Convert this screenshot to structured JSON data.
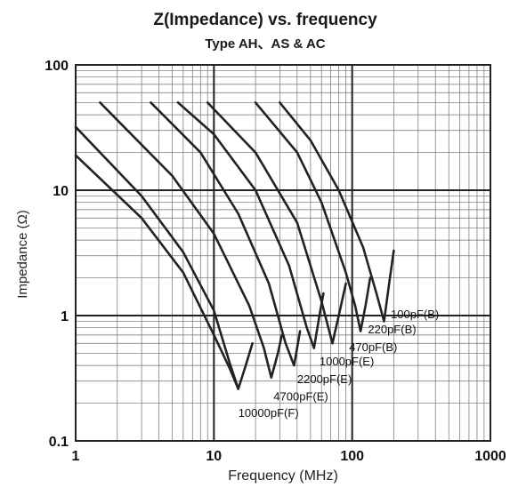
{
  "chart_data": {
    "type": "line",
    "title": "Z(Impedance) vs. frequency",
    "subtitle": "Type AH、AS & AC",
    "xlabel": "Frequency (MHz)",
    "ylabel": "Impedance (Ω)",
    "xscale": "log",
    "yscale": "log",
    "xlim": [
      1,
      1000
    ],
    "ylim": [
      0.1,
      100
    ],
    "grid": true,
    "x_ticks": [
      "1",
      "10",
      "100",
      "1000"
    ],
    "y_ticks": [
      "0.1",
      "1",
      "10",
      "100"
    ],
    "series": [
      {
        "name": "100pF(B)",
        "x": [
          30,
          50,
          80,
          120,
          150,
          170,
          185,
          200
        ],
        "y": [
          50,
          25,
          10,
          3.5,
          1.5,
          0.9,
          1.8,
          3.3
        ]
      },
      {
        "name": "220pF(B)",
        "x": [
          20,
          40,
          60,
          90,
          105,
          115,
          125,
          135
        ],
        "y": [
          50,
          20,
          8,
          2.2,
          1.2,
          0.75,
          1.2,
          2.0
        ]
      },
      {
        "name": "470pF(B)",
        "x": [
          9,
          20,
          40,
          60,
          72,
          80,
          90
        ],
        "y": [
          50,
          20,
          5.5,
          1.3,
          0.6,
          1.0,
          1.8
        ]
      },
      {
        "name": "1000pF(E)",
        "x": [
          5.5,
          10,
          20,
          35,
          47,
          53,
          58,
          62
        ],
        "y": [
          50,
          28,
          10,
          2.5,
          0.8,
          0.55,
          1.0,
          1.5
        ]
      },
      {
        "name": "2200pF(E)",
        "x": [
          3.5,
          8,
          15,
          25,
          33,
          38,
          42
        ],
        "y": [
          50,
          20,
          6.5,
          1.8,
          0.6,
          0.4,
          0.75
        ]
      },
      {
        "name": "4700pF(E)",
        "x": [
          1.5,
          5,
          10,
          18,
          23,
          26,
          29,
          31
        ],
        "y": [
          50,
          13,
          4.5,
          1.2,
          0.55,
          0.32,
          0.5,
          0.7
        ]
      },
      {
        "name": "10000pF(F)",
        "x": [
          1,
          3,
          6,
          10,
          13,
          15,
          17,
          19
        ],
        "y": [
          32,
          9,
          3.2,
          1.1,
          0.42,
          0.26,
          0.4,
          0.6
        ]
      },
      {
        "x": [
          1,
          3,
          6,
          10,
          13,
          15
        ],
        "y": [
          19,
          6,
          2.2,
          0.7,
          0.38,
          0.26
        ]
      }
    ],
    "labels": [
      {
        "text": "100pF(B)",
        "x": 190,
        "y": 0.95
      },
      {
        "text": "220pF(B)",
        "x": 130,
        "y": 0.72
      },
      {
        "text": "470pF(B)",
        "x": 95,
        "y": 0.52
      },
      {
        "text": "1000pF(E)",
        "x": 58,
        "y": 0.4
      },
      {
        "text": "2200pF(E)",
        "x": 40,
        "y": 0.29
      },
      {
        "text": "4700pF(E)",
        "x": 27,
        "y": 0.21
      },
      {
        "text": "10000pF(F)",
        "x": 15,
        "y": 0.155
      }
    ]
  }
}
